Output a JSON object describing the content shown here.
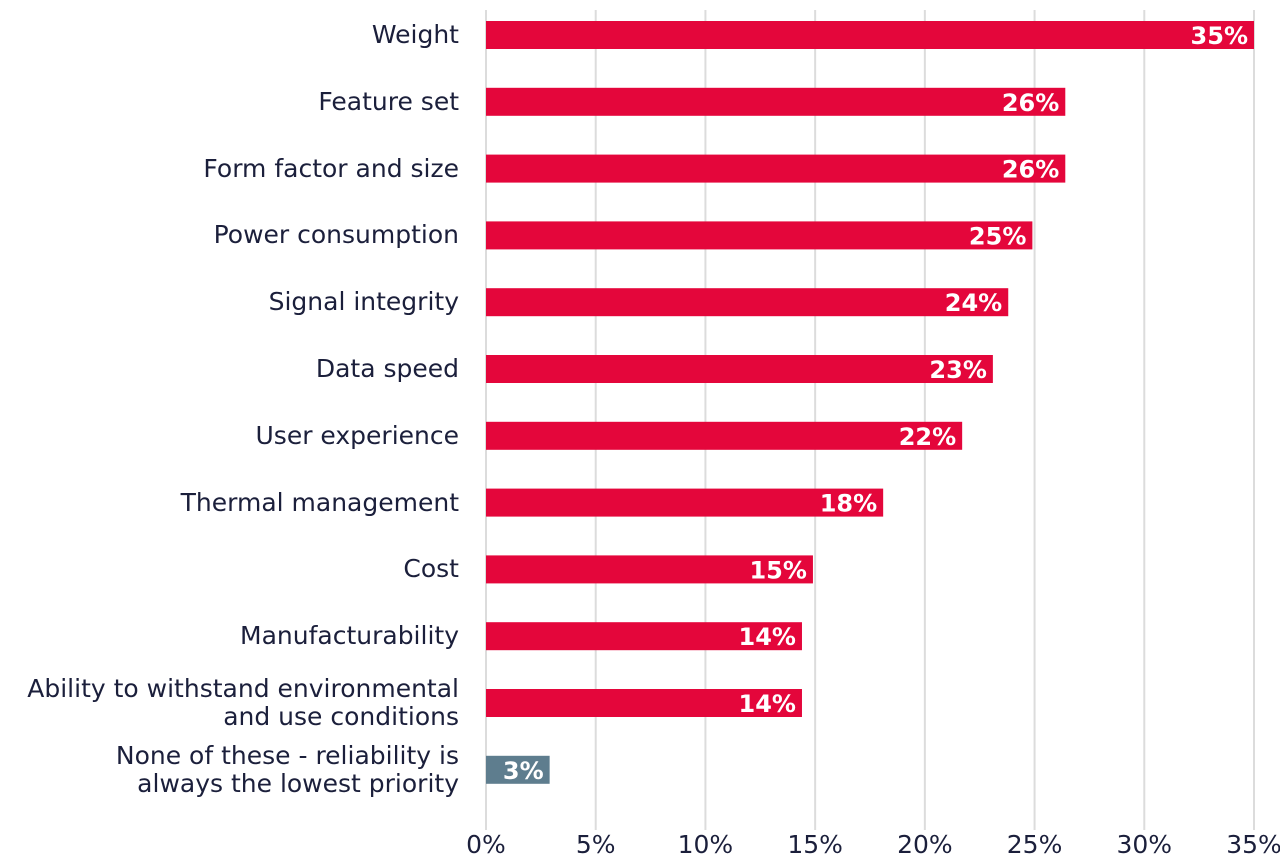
{
  "chart_data": {
    "type": "hbar",
    "categories": [
      "Weight",
      "Feature set",
      "Form factor and size",
      "Power consumption",
      "Signal integrity",
      "Data speed",
      "User experience",
      "Thermal management",
      "Cost",
      "Manufacturability",
      "Ability to withstand environmental\nand use conditions",
      "None of these - reliability is\nalways the lowest priority"
    ],
    "values": [
      35,
      26.4,
      26.4,
      24.9,
      23.8,
      23.1,
      21.7,
      18.1,
      14.9,
      14.4,
      14.4,
      2.9
    ],
    "value_labels": [
      "35%",
      "26%",
      "26%",
      "25%",
      "24%",
      "23%",
      "22%",
      "18%",
      "15%",
      "14%",
      "14%",
      "3%"
    ],
    "colors": [
      "#e4063b",
      "#e4063b",
      "#e4063b",
      "#e4063b",
      "#e4063b",
      "#e4063b",
      "#e4063b",
      "#e4063b",
      "#e4063b",
      "#e4063b",
      "#e4063b",
      "#5e7d8e"
    ],
    "xlim": [
      0,
      35
    ],
    "xticks": [
      {
        "value": 0,
        "label": "0%"
      },
      {
        "value": 5,
        "label": "5%"
      },
      {
        "value": 10,
        "label": "10%"
      },
      {
        "value": 15,
        "label": "15%"
      },
      {
        "value": 20,
        "label": "20%"
      },
      {
        "value": 25,
        "label": "25%"
      },
      {
        "value": 30,
        "label": "30%"
      },
      {
        "value": 35,
        "label": "35%"
      }
    ],
    "grid": true
  }
}
